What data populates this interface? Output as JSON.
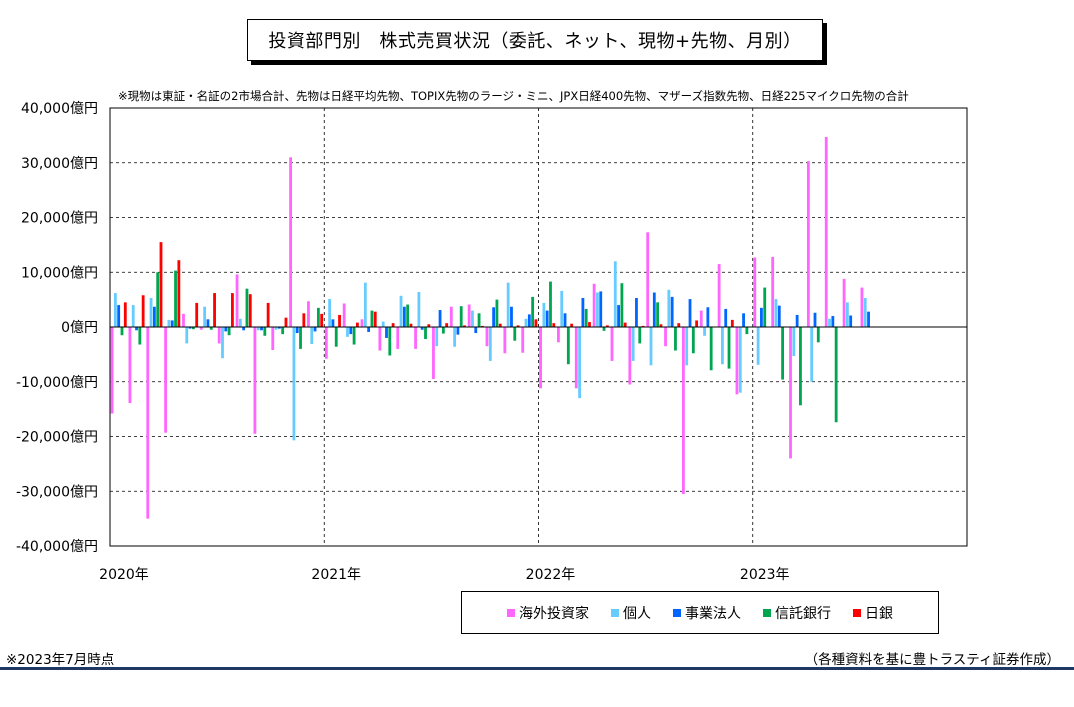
{
  "title": "投資部門別　株式売買状況（委託、ネット、現物+先物、月別）",
  "note": "※現物は東証・名証の2市場合計、先物は日経平均先物、TOPIX先物のラージ・ミニ、JPX日経400先物、マザーズ指数先物、日経225マイクロ先物の合計",
  "footnote_left": "※2023年7月時点",
  "footnote_right": "（各種資料を基に豊トラスティ証券作成）",
  "chart_data": {
    "type": "bar",
    "title": "投資部門別　株式売買状況（委託、ネット、現物+先物、月別）",
    "ylabel": "",
    "xlabel": "",
    "ylim": [
      -40000,
      40000
    ],
    "y_ticks": [
      40000,
      30000,
      20000,
      10000,
      0,
      -10000,
      -20000,
      -30000,
      -40000
    ],
    "y_tick_labels": [
      "40,000億円",
      "30,000億円",
      "20,000億円",
      "10,000億円",
      "0億円",
      "-10,000億円",
      "-20,000億円",
      "-30,000億円",
      "-40,000億円"
    ],
    "x_tick_labels": [
      "2020年",
      "2021年",
      "2022年",
      "2023年"
    ],
    "grid": true,
    "legend_position": "bottom-right",
    "months_total": 48,
    "categories": [
      "2020-01",
      "2020-02",
      "2020-03",
      "2020-04",
      "2020-05",
      "2020-06",
      "2020-07",
      "2020-08",
      "2020-09",
      "2020-10",
      "2020-11",
      "2020-12",
      "2021-01",
      "2021-02",
      "2021-03",
      "2021-04",
      "2021-05",
      "2021-06",
      "2021-07",
      "2021-08",
      "2021-09",
      "2021-10",
      "2021-11",
      "2021-12",
      "2022-01",
      "2022-02",
      "2022-03",
      "2022-04",
      "2022-05",
      "2022-06",
      "2022-07",
      "2022-08",
      "2022-09",
      "2022-10",
      "2022-11",
      "2022-12",
      "2023-01",
      "2023-02",
      "2023-03",
      "2023-04",
      "2023-05",
      "2023-06",
      "2023-07"
    ],
    "series": [
      {
        "name": "海外投資家",
        "color": "#ff66ff",
        "values": [
          -15800,
          -13900,
          -35000,
          -19300,
          2400,
          -500,
          -3000,
          9600,
          -19500,
          -4200,
          31000,
          4700,
          -5800,
          4300,
          1400,
          -4300,
          -4000,
          -4000,
          -9500,
          3700,
          4100,
          -3500,
          -4800,
          -4700,
          -11200,
          -2800,
          -11200,
          7900,
          -6200,
          -10500,
          17300,
          -3500,
          -30500,
          3000,
          11500,
          -12300,
          12700,
          12800,
          -24000,
          30300,
          34700,
          8800,
          7200
        ]
      },
      {
        "name": "個人",
        "color": "#66ccff",
        "values": [
          6200,
          4000,
          5300,
          1300,
          -3000,
          3700,
          -5700,
          1500,
          -600,
          -500,
          -20700,
          -3100,
          5100,
          -1800,
          8100,
          1000,
          5700,
          6400,
          -3500,
          -3600,
          3000,
          -6200,
          8100,
          1500,
          4400,
          6600,
          -13000,
          6300,
          12000,
          -6200,
          -7000,
          6800,
          -7000,
          -1600,
          -6800,
          -12000,
          -6900,
          5100,
          -5300,
          -10000,
          1500,
          4500,
          5300
        ]
      },
      {
        "name": "事業法人",
        "color": "#0066ff",
        "values": [
          4000,
          -600,
          3700,
          1200,
          -300,
          1400,
          -800,
          -600,
          -600,
          -300,
          -1100,
          -800,
          1400,
          -1300,
          -900,
          -2000,
          3700,
          -500,
          3100,
          -1400,
          -1100,
          3600,
          3700,
          2300,
          3000,
          2500,
          5300,
          6500,
          4000,
          5300,
          6300,
          5500,
          5100,
          3600,
          3300,
          2500,
          3500,
          3900,
          2200,
          2600,
          2000,
          2100,
          2800
        ]
      },
      {
        "name": "信託銀行",
        "color": "#00a550",
        "values": [
          -1500,
          -3200,
          10000,
          10300,
          -400,
          -500,
          -1500,
          7000,
          -1600,
          -1300,
          -4000,
          3500,
          -3600,
          -3200,
          3000,
          -5200,
          4100,
          -2200,
          -1200,
          3800,
          2500,
          5000,
          -2500,
          5500,
          8300,
          -6800,
          3300,
          -700,
          8000,
          -3000,
          4500,
          -4300,
          -4800,
          -7900,
          -7600,
          -1300,
          7200,
          -9600,
          -14300,
          -2800,
          -17400,
          0,
          0
        ]
      },
      {
        "name": "日銀",
        "color": "#ff0000",
        "values": [
          4500,
          5800,
          15500,
          12200,
          4400,
          6200,
          6200,
          6000,
          4400,
          1700,
          2500,
          2400,
          2200,
          800,
          2800,
          700,
          600,
          500,
          700,
          300,
          200,
          600,
          300,
          1400,
          700,
          600,
          900,
          300,
          800,
          200,
          500,
          700,
          1200,
          0,
          1300,
          0,
          0,
          0,
          0,
          0,
          0,
          0,
          0
        ]
      }
    ]
  },
  "legend": [
    {
      "label": "海外投資家",
      "color": "#ff66ff"
    },
    {
      "label": "個人",
      "color": "#66ccff"
    },
    {
      "label": "事業法人",
      "color": "#0066ff"
    },
    {
      "label": "信託銀行",
      "color": "#00a550"
    },
    {
      "label": "日銀",
      "color": "#ff0000"
    }
  ]
}
